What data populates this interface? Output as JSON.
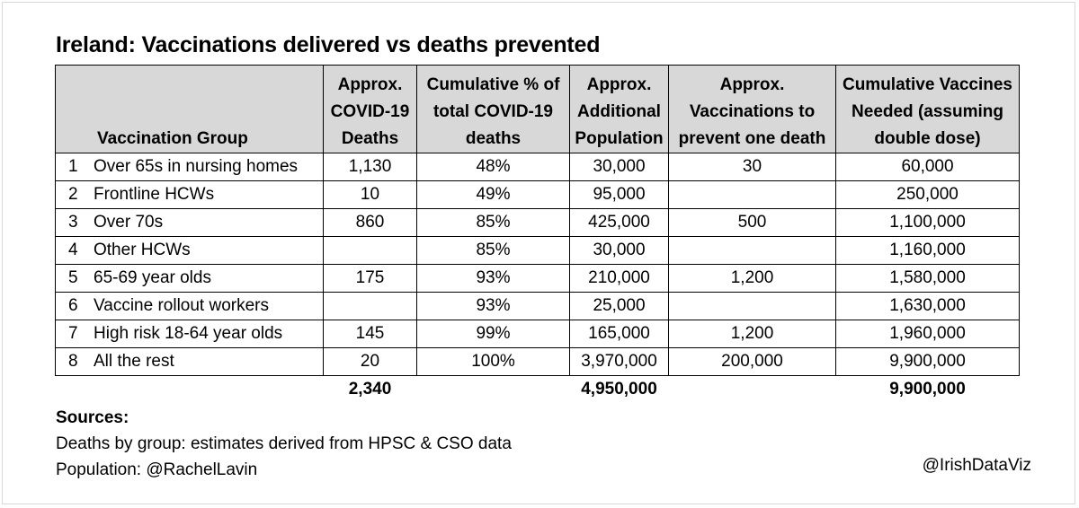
{
  "title": "Ireland: Vaccinations delivered vs deaths prevented",
  "table": {
    "headers": {
      "group": "Vaccination Group",
      "deaths": [
        "Approx.",
        "COVID-19",
        "Deaths"
      ],
      "cum_pct": [
        "Cumulative % of",
        "total COVID-19",
        "deaths"
      ],
      "add_pop": [
        "Approx.",
        "Additional",
        "Population"
      ],
      "vacc_per_death": [
        "Approx.",
        "Vaccinations to",
        "prevent one death"
      ],
      "cum_vaccines": [
        "Cumulative Vaccines",
        "Needed (assuming",
        "double dose)"
      ]
    },
    "rows": [
      {
        "num": "1",
        "group": "Over 65s in nursing homes",
        "deaths": "1,130",
        "cum_pct": "48%",
        "add_pop": "30,000",
        "vacc_per_death": "30",
        "cum_vaccines": "60,000"
      },
      {
        "num": "2",
        "group": "Frontline HCWs",
        "deaths": "10",
        "cum_pct": "49%",
        "add_pop": "95,000",
        "vacc_per_death": "",
        "cum_vaccines": "250,000"
      },
      {
        "num": "3",
        "group": "Over 70s",
        "deaths": "860",
        "cum_pct": "85%",
        "add_pop": "425,000",
        "vacc_per_death": "500",
        "cum_vaccines": "1,100,000"
      },
      {
        "num": "4",
        "group": "Other HCWs",
        "deaths": "",
        "cum_pct": "85%",
        "add_pop": "30,000",
        "vacc_per_death": "",
        "cum_vaccines": "1,160,000"
      },
      {
        "num": "5",
        "group": "65-69 year olds",
        "deaths": "175",
        "cum_pct": "93%",
        "add_pop": "210,000",
        "vacc_per_death": "1,200",
        "cum_vaccines": "1,580,000"
      },
      {
        "num": "6",
        "group": "Vaccine rollout workers",
        "deaths": "",
        "cum_pct": "93%",
        "add_pop": "25,000",
        "vacc_per_death": "",
        "cum_vaccines": "1,630,000"
      },
      {
        "num": "7",
        "group": "High risk 18-64 year olds",
        "deaths": "145",
        "cum_pct": "99%",
        "add_pop": "165,000",
        "vacc_per_death": "1,200",
        "cum_vaccines": "1,960,000"
      },
      {
        "num": "8",
        "group": "All the rest",
        "deaths": "20",
        "cum_pct": "100%",
        "add_pop": "3,970,000",
        "vacc_per_death": "200,000",
        "cum_vaccines": "9,900,000"
      }
    ],
    "totals": {
      "deaths": "2,340",
      "add_pop": "4,950,000",
      "cum_vaccines": "9,900,000"
    }
  },
  "sources": {
    "heading": "Sources:",
    "lines": [
      "Deaths by group: estimates derived from HPSC & CSO data",
      "Population: @RachelLavin"
    ]
  },
  "credit": "@IrishDataViz",
  "colors": {
    "header_bg": "#d8d8d8",
    "border": "#000000",
    "frame": "#d9d9d9"
  }
}
